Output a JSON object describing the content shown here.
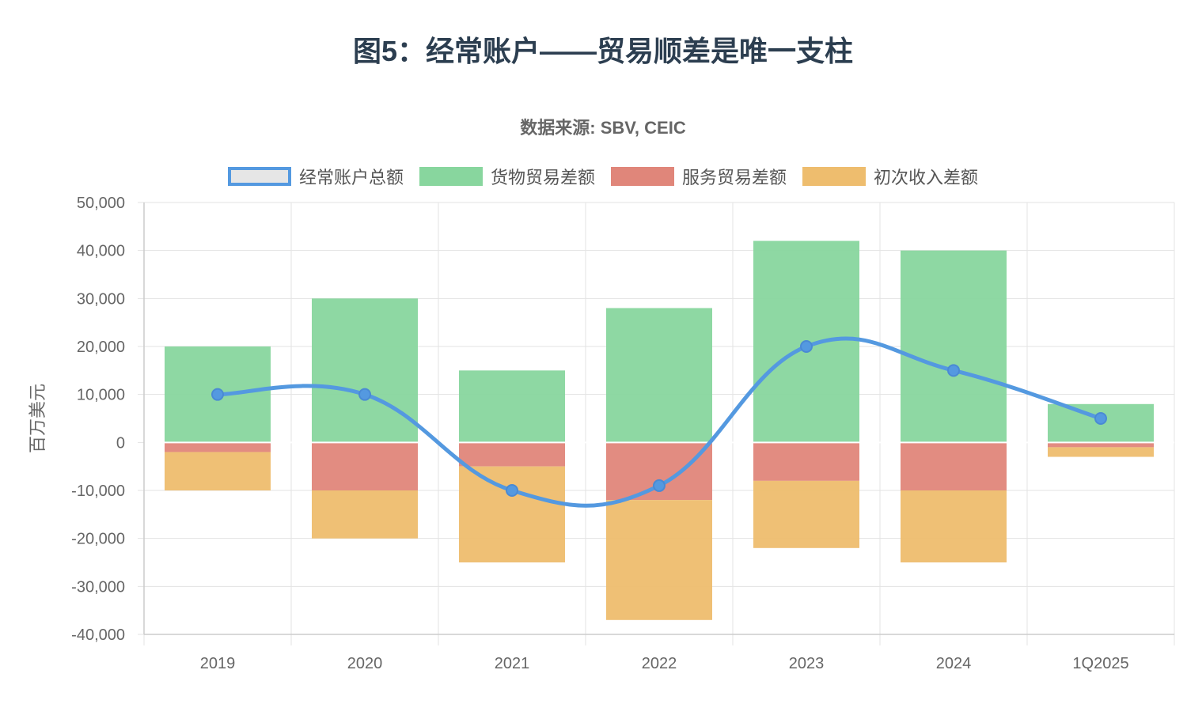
{
  "chart_data": {
    "type": "bar",
    "title": "图5：经常账户——贸易顺差是唯一支柱",
    "subtitle": "数据来源: SBV, CEIC",
    "ylabel": "百万美元",
    "xlabel": "",
    "categories": [
      "2019",
      "2020",
      "2021",
      "2022",
      "2023",
      "2024",
      "1Q2025"
    ],
    "ylim": [
      -40000,
      50000
    ],
    "yticks": [
      50000,
      40000,
      30000,
      20000,
      10000,
      0,
      -10000,
      -20000,
      -30000,
      -40000
    ],
    "ytick_labels": [
      "50,000",
      "40,000",
      "30,000",
      "20,000",
      "10,000",
      "0",
      "-10,000",
      "-20,000",
      "-30,000",
      "-40,000"
    ],
    "stacked": true,
    "grid": true,
    "legend_position": "top-center",
    "series": [
      {
        "name": "经常账户总额",
        "type": "line",
        "color": "#5499e0",
        "values": [
          10000,
          10000,
          -10000,
          -9000,
          20000,
          15000,
          5000
        ]
      },
      {
        "name": "货物贸易差额",
        "type": "bar",
        "color": "#88d69e",
        "values": [
          20000,
          30000,
          15000,
          28000,
          42000,
          40000,
          8000
        ]
      },
      {
        "name": "服务贸易差额",
        "type": "bar",
        "color": "#e0867a",
        "values": [
          -2000,
          -10000,
          -5000,
          -12000,
          -8000,
          -10000,
          -1000
        ]
      },
      {
        "name": "初次收入差额",
        "type": "bar",
        "color": "#eebd6e",
        "values": [
          -8000,
          -10000,
          -20000,
          -25000,
          -14000,
          -15000,
          -2000
        ]
      }
    ]
  }
}
